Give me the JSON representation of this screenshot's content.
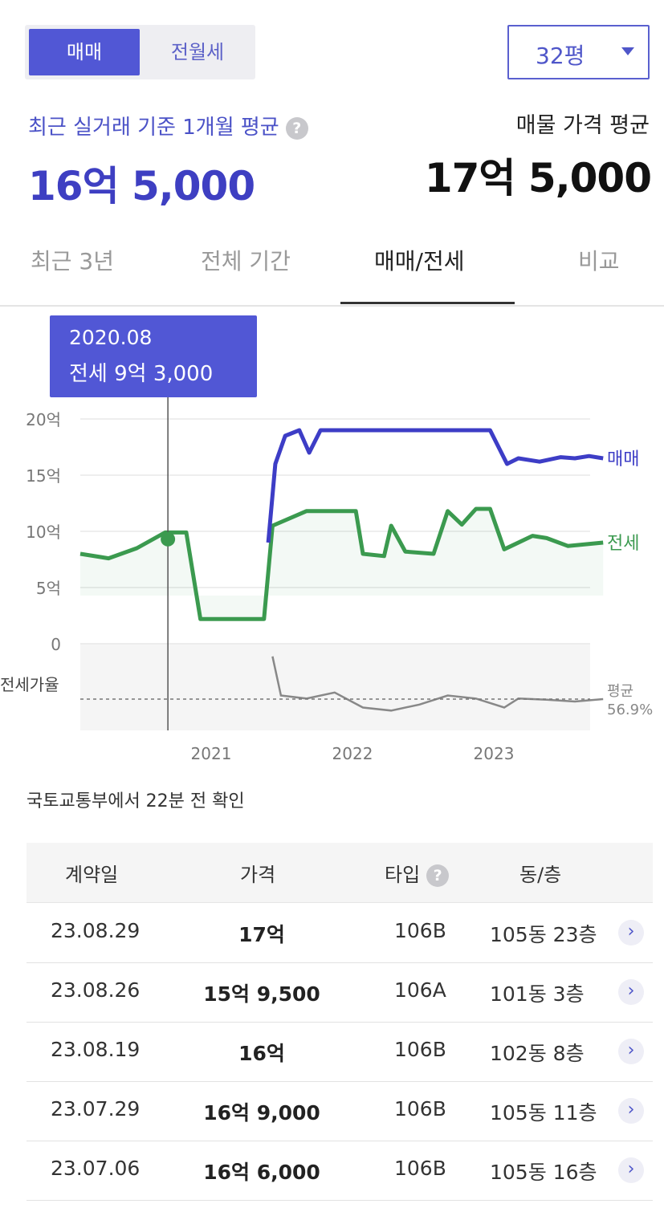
{
  "toggle": {
    "sale": "매매",
    "jeonse_monthly": "전월세"
  },
  "size_select": {
    "value": "32평"
  },
  "recent": {
    "label": "최근 실거래 기준 1개월 평균",
    "value": "16억 5,000"
  },
  "listing": {
    "label": "매물 가격 평균",
    "value": "17억 5,000"
  },
  "tabs": [
    "최근 3년",
    "전체 기간",
    "매매/전세",
    "비교"
  ],
  "active_tab": "매매/전세",
  "chart_data": {
    "type": "line",
    "tooltip": {
      "date": "2020.08",
      "text": "전세 9억 3,000"
    },
    "y_ticks": [
      "20억",
      "15억",
      "10억",
      "5억",
      "0"
    ],
    "x_ticks": [
      "2021",
      "2022",
      "2023"
    ],
    "ylim": [
      0,
      20
    ],
    "series": [
      {
        "name": "매매",
        "color": "#3d3dc6",
        "x": [
          2021.33,
          2021.38,
          2021.45,
          2021.55,
          2021.62,
          2021.7,
          2021.8,
          2022.0,
          2022.5,
          2022.9,
          2023.02,
          2023.1,
          2023.25,
          2023.4,
          2023.5,
          2023.6,
          2023.7
        ],
        "values": [
          9,
          16,
          18.5,
          19,
          17,
          19,
          19,
          19,
          19,
          19,
          16,
          16.5,
          16.2,
          16.6,
          16.5,
          16.7,
          16.5
        ]
      },
      {
        "name": "전세",
        "color": "#3b9a4f",
        "x": [
          2020.0,
          2020.2,
          2020.4,
          2020.6,
          2020.75,
          2020.85,
          2021.0,
          2021.3,
          2021.36,
          2021.6,
          2021.7,
          2021.95,
          2022.0,
          2022.15,
          2022.2,
          2022.3,
          2022.5,
          2022.6,
          2022.7,
          2022.8,
          2022.9,
          2023.0,
          2023.2,
          2023.3,
          2023.45,
          2023.7
        ],
        "values": [
          8.0,
          7.6,
          8.5,
          9.9,
          9.9,
          2.2,
          2.2,
          2.2,
          10.5,
          11.8,
          11.8,
          11.8,
          8.0,
          7.8,
          10.5,
          8.2,
          8.0,
          11.8,
          10.6,
          12.0,
          12.0,
          8.4,
          9.6,
          9.4,
          8.7,
          9.0
        ]
      },
      {
        "name": "전세가율",
        "color": "#888888",
        "x": [
          2021.36,
          2021.42,
          2021.6,
          2021.8,
          2022.0,
          2022.2,
          2022.4,
          2022.6,
          2022.8,
          2023.0,
          2023.1,
          2023.3,
          2023.5,
          2023.7
        ],
        "values": [
          64,
          57.5,
          57,
          58,
          55.5,
          55,
          56,
          57.5,
          57,
          55.5,
          57,
          56.8,
          56.5,
          56.9
        ]
      }
    ],
    "series_labels": {
      "sale": "매매",
      "jeonse": "전세"
    },
    "ratio_label": "전세가율",
    "ratio_avg_label": "평균",
    "ratio_avg_value": "56.9%"
  },
  "source_note": "국토교통부에서 22분 전 확인",
  "table": {
    "headers": [
      "계약일",
      "가격",
      "타입",
      "동/층"
    ],
    "rows": [
      {
        "date": "23.08.29",
        "price": "17억",
        "type": "106B",
        "dong": "105동 23층"
      },
      {
        "date": "23.08.26",
        "price": "15억 9,500",
        "type": "106A",
        "dong": "101동 3층"
      },
      {
        "date": "23.08.19",
        "price": "16억",
        "type": "106B",
        "dong": "102동 8층"
      },
      {
        "date": "23.07.29",
        "price": "16억 9,000",
        "type": "106B",
        "dong": "105동 11층"
      },
      {
        "date": "23.07.06",
        "price": "16억 6,000",
        "type": "106B",
        "dong": "105동 16층"
      }
    ]
  }
}
